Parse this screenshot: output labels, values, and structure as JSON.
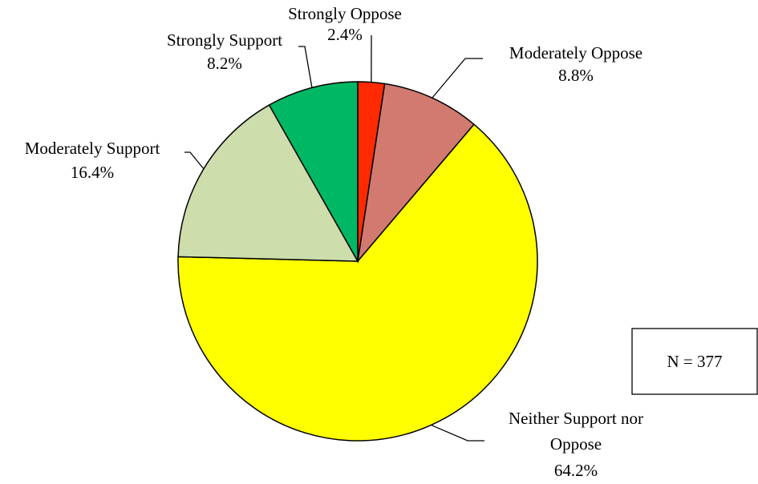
{
  "chart_data": {
    "type": "pie",
    "title": "",
    "slices": [
      {
        "label": "Strongly Oppose",
        "percent_label": "2.4%",
        "value": 2.4,
        "color": "#ff2a00"
      },
      {
        "label": "Moderately Oppose",
        "percent_label": "8.8%",
        "value": 8.8,
        "color": "#d27a70"
      },
      {
        "label": "Neither Support nor Oppose",
        "percent_label": "64.2%",
        "value": 64.2,
        "color": "#ffff00"
      },
      {
        "label": "Moderately Support",
        "percent_label": "16.4%",
        "value": 16.4,
        "color": "#cdddac"
      },
      {
        "label": "Strongly Support",
        "percent_label": "8.2%",
        "value": 8.2,
        "color": "#00b864"
      }
    ],
    "annotation": "N = 377"
  }
}
